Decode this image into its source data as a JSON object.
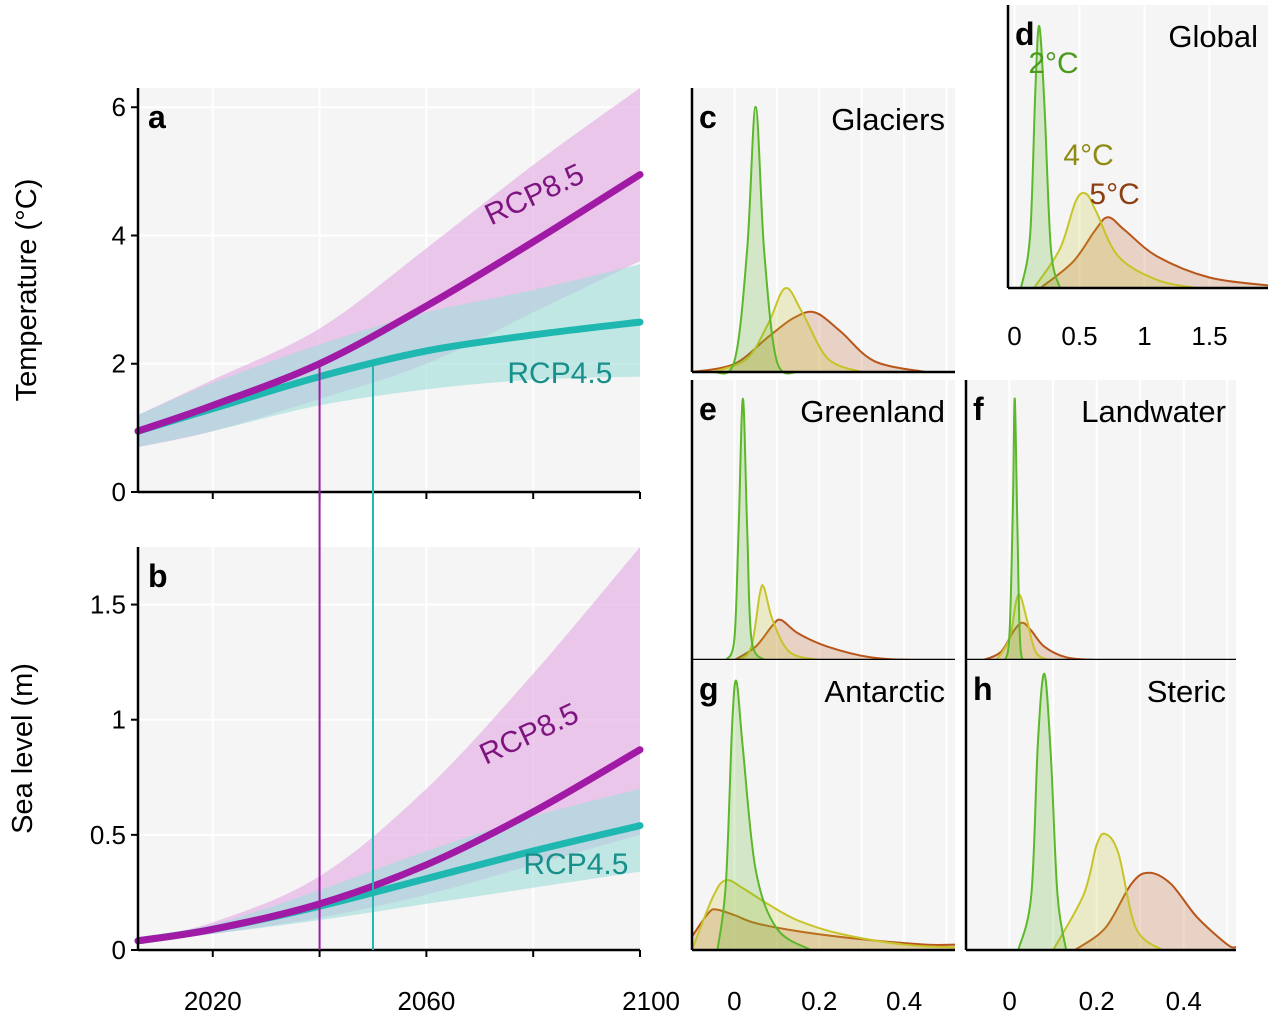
{
  "colors": {
    "rcp85": "#a01aa6",
    "rcp85_band": "#e3a6e3",
    "rcp45": "#1fb8b0",
    "rcp45_band": "#9fdedb",
    "rcp85_label": "#7d147f",
    "rcp45_label": "#178f8a",
    "deg2": "#5cb82a",
    "deg4": "#c7c42a",
    "deg5": "#b8551a",
    "deg2_label": "#4a9a1e",
    "deg4_label": "#8f8a14",
    "deg5_label": "#8c3f12",
    "panel_bg": "#f5f5f5",
    "grid": "#ffffff"
  },
  "chart_data": [
    {
      "id": "a",
      "type": "line",
      "panel_label": "a",
      "ylabel": "Temperature (°C)",
      "ylim": [
        0,
        6.3
      ],
      "xlim": [
        2006,
        2100
      ],
      "yticks": [
        0,
        2,
        4,
        6
      ],
      "ytick_labels": [
        "0",
        "2",
        "4",
        "6"
      ],
      "series": [
        {
          "name": "RCP8.5",
          "color_key": "rcp85",
          "x": [
            2006,
            2020,
            2040,
            2060,
            2080,
            2100
          ],
          "y": [
            0.95,
            1.35,
            2.0,
            2.9,
            3.9,
            4.95
          ],
          "lo": [
            0.7,
            0.95,
            1.45,
            2.0,
            2.8,
            3.6
          ],
          "hi": [
            1.2,
            1.75,
            2.55,
            3.8,
            5.1,
            6.3
          ]
        },
        {
          "name": "RCP4.5",
          "color_key": "rcp45",
          "x": [
            2006,
            2020,
            2040,
            2060,
            2080,
            2100
          ],
          "y": [
            0.95,
            1.3,
            1.8,
            2.2,
            2.45,
            2.65
          ],
          "lo": [
            0.7,
            0.95,
            1.35,
            1.6,
            1.75,
            1.8
          ],
          "hi": [
            1.2,
            1.7,
            2.3,
            2.8,
            3.15,
            3.55
          ]
        }
      ],
      "annotations": [
        {
          "text": "RCP8.5",
          "color_key": "rcp85_label",
          "x": 2081,
          "y": 4.5,
          "rotate": -25
        },
        {
          "text": "RCP4.5",
          "color_key": "rcp45_label",
          "x": 2085,
          "y": 1.7,
          "rotate": 0
        }
      ]
    },
    {
      "id": "b",
      "type": "line",
      "panel_label": "b",
      "ylabel": "Sea level (m)",
      "xlabel": "",
      "ylim": [
        0,
        1.75
      ],
      "xlim": [
        2006,
        2100
      ],
      "xticks": [
        2020,
        2060,
        2100
      ],
      "xtick_labels": [
        "2020",
        "2060",
        "2100"
      ],
      "yticks": [
        0,
        0.5,
        1,
        1.5
      ],
      "ytick_labels": [
        "0",
        "0.5",
        "1",
        "1.5"
      ],
      "series": [
        {
          "name": "RCP8.5",
          "color_key": "rcp85",
          "x": [
            2006,
            2020,
            2040,
            2060,
            2080,
            2100
          ],
          "y": [
            0.04,
            0.09,
            0.2,
            0.37,
            0.6,
            0.87
          ],
          "lo": [
            0.03,
            0.07,
            0.14,
            0.24,
            0.37,
            0.5
          ],
          "hi": [
            0.05,
            0.12,
            0.32,
            0.7,
            1.2,
            1.75
          ]
        },
        {
          "name": "RCP4.5",
          "color_key": "rcp45",
          "x": [
            2006,
            2020,
            2040,
            2060,
            2080,
            2100
          ],
          "y": [
            0.04,
            0.09,
            0.19,
            0.31,
            0.43,
            0.54
          ],
          "lo": [
            0.03,
            0.07,
            0.13,
            0.2,
            0.27,
            0.34
          ],
          "hi": [
            0.05,
            0.11,
            0.26,
            0.43,
            0.58,
            0.7
          ]
        }
      ],
      "vlines": [
        {
          "x": 2040,
          "color_key": "rcp85"
        },
        {
          "x": 2050,
          "color_key": "rcp45"
        }
      ],
      "annotations": [
        {
          "text": "RCP8.5",
          "color_key": "rcp85_label",
          "x": 2080,
          "y": 0.9,
          "rotate": -25
        },
        {
          "text": "RCP4.5",
          "color_key": "rcp45_label",
          "x": 2088,
          "y": 0.33,
          "rotate": 0
        }
      ]
    },
    {
      "id": "c",
      "type": "area",
      "panel_label": "c",
      "title": "Glaciers",
      "xlim": [
        -0.1,
        0.52
      ],
      "ymax": 1.05,
      "series": [
        {
          "name": "2°C",
          "color_key": "deg2",
          "x": [
            -0.05,
            0.0,
            0.03,
            0.05,
            0.07,
            0.1,
            0.15
          ],
          "y": [
            0,
            0.04,
            0.45,
            0.98,
            0.45,
            0.04,
            0
          ]
        },
        {
          "name": "4°C",
          "color_key": "deg4",
          "x": [
            -0.05,
            0.03,
            0.08,
            0.12,
            0.16,
            0.22,
            0.3
          ],
          "y": [
            0,
            0.05,
            0.18,
            0.31,
            0.22,
            0.05,
            0
          ]
        },
        {
          "name": "5°C",
          "color_key": "deg5",
          "x": [
            -0.1,
            0.0,
            0.08,
            0.14,
            0.19,
            0.25,
            0.33,
            0.45
          ],
          "y": [
            0,
            0.03,
            0.13,
            0.2,
            0.22,
            0.15,
            0.04,
            0
          ]
        }
      ]
    },
    {
      "id": "d",
      "type": "area",
      "panel_label": "d",
      "title": "Global",
      "xlim": [
        -0.05,
        1.95
      ],
      "ymax": 1.08,
      "xticks": [
        0,
        0.5,
        1,
        1.5
      ],
      "xtick_labels": [
        "0",
        "0.5",
        "1",
        "1.5"
      ],
      "series": [
        {
          "name": "2°C",
          "color_key": "deg2",
          "x": [
            0.05,
            0.12,
            0.16,
            0.19,
            0.23,
            0.28,
            0.35
          ],
          "y": [
            0,
            0.2,
            0.75,
            1.0,
            0.7,
            0.15,
            0
          ]
        },
        {
          "name": "4°C",
          "color_key": "deg4",
          "x": [
            0.15,
            0.35,
            0.47,
            0.55,
            0.63,
            0.8,
            1.1,
            1.4
          ],
          "y": [
            0,
            0.15,
            0.33,
            0.36,
            0.29,
            0.12,
            0.03,
            0
          ]
        },
        {
          "name": "5°C",
          "color_key": "deg5",
          "x": [
            0.2,
            0.45,
            0.62,
            0.72,
            0.85,
            1.1,
            1.5,
            1.95
          ],
          "y": [
            0,
            0.1,
            0.22,
            0.27,
            0.22,
            0.12,
            0.04,
            0.01
          ]
        }
      ],
      "annotations": [
        {
          "text": "2°C",
          "color_key": "deg2_label",
          "x": 0.3,
          "y": 0.82
        },
        {
          "text": "4°C",
          "color_key": "deg4_label",
          "x": 0.57,
          "y": 0.47
        },
        {
          "text": "5°C",
          "color_key": "deg5_label",
          "x": 0.77,
          "y": 0.32
        }
      ]
    },
    {
      "id": "e",
      "type": "area",
      "panel_label": "e",
      "title": "Greenland",
      "xlim": [
        -0.1,
        0.52
      ],
      "ymax": 1.05,
      "series": [
        {
          "name": "2°C",
          "color_key": "deg2",
          "x": [
            -0.02,
            0.0,
            0.01,
            0.02,
            0.03,
            0.04,
            0.07
          ],
          "y": [
            0,
            0.08,
            0.5,
            0.98,
            0.5,
            0.08,
            0
          ]
        },
        {
          "name": "4°C",
          "color_key": "deg4",
          "x": [
            0.01,
            0.04,
            0.06,
            0.07,
            0.09,
            0.13,
            0.2
          ],
          "y": [
            0,
            0.05,
            0.25,
            0.27,
            0.15,
            0.03,
            0
          ]
        },
        {
          "name": "5°C",
          "color_key": "deg5",
          "x": [
            0.0,
            0.05,
            0.09,
            0.11,
            0.15,
            0.22,
            0.32,
            0.42
          ],
          "y": [
            0,
            0.05,
            0.13,
            0.15,
            0.1,
            0.05,
            0.01,
            0
          ]
        }
      ]
    },
    {
      "id": "f",
      "type": "area",
      "panel_label": "f",
      "title": "Landwater",
      "xlim": [
        -0.1,
        0.52
      ],
      "ymax": 1.05,
      "series": [
        {
          "name": "2°C",
          "color_key": "deg2",
          "x": [
            -0.01,
            0.0,
            0.008,
            0.012,
            0.018,
            0.025,
            0.04
          ],
          "y": [
            0,
            0.1,
            0.6,
            0.98,
            0.5,
            0.05,
            0
          ]
        },
        {
          "name": "4°C",
          "color_key": "deg4",
          "x": [
            -0.03,
            0.0,
            0.015,
            0.025,
            0.04,
            0.06,
            0.09
          ],
          "y": [
            0,
            0.08,
            0.22,
            0.24,
            0.15,
            0.03,
            0
          ]
        },
        {
          "name": "5°C",
          "color_key": "deg5",
          "x": [
            -0.06,
            -0.02,
            0.01,
            0.03,
            0.05,
            0.08,
            0.13,
            0.2
          ],
          "y": [
            0,
            0.03,
            0.11,
            0.14,
            0.11,
            0.05,
            0.01,
            0
          ]
        }
      ]
    },
    {
      "id": "g",
      "type": "area",
      "panel_label": "g",
      "title": "Antarctic",
      "xlim": [
        -0.1,
        0.52
      ],
      "ymax": 1.08,
      "xticks": [
        0,
        0.2,
        0.4
      ],
      "xtick_labels": [
        "0",
        "0.2",
        "0.4"
      ],
      "series": [
        {
          "name": "2°C",
          "color_key": "deg2",
          "x": [
            -0.04,
            -0.02,
            -0.005,
            0.005,
            0.02,
            0.05,
            0.1,
            0.18
          ],
          "y": [
            0,
            0.25,
            0.85,
            1.0,
            0.75,
            0.3,
            0.08,
            0
          ]
        },
        {
          "name": "4°C",
          "color_key": "deg4",
          "x": [
            -0.1,
            -0.05,
            -0.02,
            0.02,
            0.08,
            0.15,
            0.25,
            0.4,
            0.52
          ],
          "y": [
            0,
            0.2,
            0.26,
            0.23,
            0.17,
            0.11,
            0.06,
            0.02,
            0.01
          ]
        },
        {
          "name": "5°C",
          "color_key": "deg5",
          "x": [
            -0.1,
            -0.06,
            -0.04,
            0.0,
            0.05,
            0.15,
            0.3,
            0.45,
            0.52
          ],
          "y": [
            0.05,
            0.14,
            0.15,
            0.13,
            0.1,
            0.07,
            0.04,
            0.02,
            0.02
          ]
        }
      ]
    },
    {
      "id": "h",
      "type": "area",
      "panel_label": "h",
      "title": "Steric",
      "xlim": [
        -0.1,
        0.52
      ],
      "ymax": 1.05,
      "xticks": [
        0,
        0.2,
        0.4
      ],
      "xtick_labels": [
        "0",
        "0.2",
        "0.4"
      ],
      "series": [
        {
          "name": "2°C",
          "color_key": "deg2",
          "x": [
            0.02,
            0.05,
            0.065,
            0.08,
            0.095,
            0.11,
            0.13
          ],
          "y": [
            0,
            0.2,
            0.75,
            1.0,
            0.7,
            0.2,
            0
          ]
        },
        {
          "name": "4°C",
          "color_key": "deg4",
          "x": [
            0.1,
            0.17,
            0.2,
            0.22,
            0.25,
            0.29,
            0.35
          ],
          "y": [
            0,
            0.2,
            0.38,
            0.42,
            0.35,
            0.08,
            0
          ]
        },
        {
          "name": "5°C",
          "color_key": "deg5",
          "x": [
            0.15,
            0.22,
            0.28,
            0.32,
            0.37,
            0.43,
            0.5,
            0.52
          ],
          "y": [
            0,
            0.08,
            0.24,
            0.28,
            0.24,
            0.12,
            0.02,
            0.01
          ]
        }
      ]
    }
  ]
}
